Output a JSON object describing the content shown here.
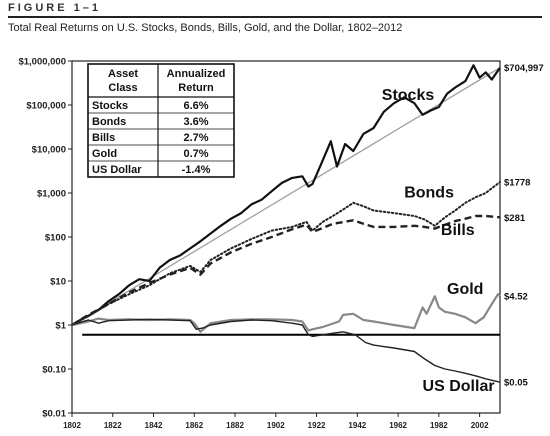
{
  "figure": {
    "label": "FIGURE 1–1",
    "title": "Total Real Returns on U.S. Stocks, Bonds, Bills, Gold, and the Dollar, 1802–2012"
  },
  "colors": {
    "stocks": "#111111",
    "bonds": "#222222",
    "bills": "#222222",
    "gold": "#888888",
    "dollar": "#222222",
    "trend": "#999999",
    "baseline": "#000000"
  },
  "table": {
    "headers": [
      "Asset Class",
      "Annualized Return"
    ],
    "rows": [
      {
        "asset": "Stocks",
        "return": "6.6%"
      },
      {
        "asset": "Bonds",
        "return": "3.6%"
      },
      {
        "asset": "Bills",
        "return": "2.7%"
      },
      {
        "asset": "Gold",
        "return": "0.7%"
      },
      {
        "asset": "US Dollar",
        "return": "-1.4%"
      }
    ]
  },
  "chart_data": {
    "type": "line",
    "title": "Total Real Returns on U.S. Stocks, Bonds, Bills, Gold, and the Dollar, 1802–2012",
    "xlabel": "",
    "ylabel": "",
    "yscale": "log",
    "xlim": [
      1802,
      2012
    ],
    "ylim": [
      0.01,
      1000000
    ],
    "grid": false,
    "y_ticks": [
      {
        "value": 0.01,
        "label": "$0.01"
      },
      {
        "value": 0.1,
        "label": "$0.10"
      },
      {
        "value": 1,
        "label": "$1"
      },
      {
        "value": 10,
        "label": "$10"
      },
      {
        "value": 100,
        "label": "$100"
      },
      {
        "value": 1000,
        "label": "$1,000"
      },
      {
        "value": 10000,
        "label": "$10,000"
      },
      {
        "value": 100000,
        "label": "$100,000"
      },
      {
        "value": 1000000,
        "label": "$1,000,000"
      }
    ],
    "x_ticks": [
      1802,
      1822,
      1842,
      1862,
      1882,
      1902,
      1922,
      1942,
      1962,
      1982,
      2002
    ],
    "baseline_value": 0.6,
    "series": [
      {
        "name": "Stocks",
        "end_label": "$704,997",
        "style": "solid-thick",
        "points": [
          [
            1802,
            1
          ],
          [
            1806,
            1.3
          ],
          [
            1810,
            1.6
          ],
          [
            1815,
            2.2
          ],
          [
            1820,
            3.5
          ],
          [
            1825,
            5
          ],
          [
            1830,
            8
          ],
          [
            1835,
            11
          ],
          [
            1840,
            10
          ],
          [
            1845,
            20
          ],
          [
            1850,
            30
          ],
          [
            1855,
            38
          ],
          [
            1860,
            55
          ],
          [
            1865,
            80
          ],
          [
            1870,
            120
          ],
          [
            1875,
            180
          ],
          [
            1880,
            260
          ],
          [
            1885,
            350
          ],
          [
            1890,
            550
          ],
          [
            1895,
            700
          ],
          [
            1900,
            1100
          ],
          [
            1905,
            1700
          ],
          [
            1910,
            2200
          ],
          [
            1915,
            2400
          ],
          [
            1918,
            1400
          ],
          [
            1920,
            1600
          ],
          [
            1925,
            5500
          ],
          [
            1929,
            15000
          ],
          [
            1932,
            4000
          ],
          [
            1936,
            13000
          ],
          [
            1940,
            9000
          ],
          [
            1945,
            22000
          ],
          [
            1950,
            30000
          ],
          [
            1955,
            70000
          ],
          [
            1960,
            110000
          ],
          [
            1965,
            150000
          ],
          [
            1970,
            110000
          ],
          [
            1974,
            60000
          ],
          [
            1978,
            75000
          ],
          [
            1982,
            90000
          ],
          [
            1986,
            180000
          ],
          [
            1990,
            250000
          ],
          [
            1995,
            350000
          ],
          [
            1999,
            800000
          ],
          [
            2002,
            420000
          ],
          [
            2005,
            550000
          ],
          [
            2008,
            380000
          ],
          [
            2012,
            704997
          ]
        ]
      },
      {
        "name": "Bonds",
        "end_label": "$1778",
        "style": "dotted",
        "points": [
          [
            1802,
            1
          ],
          [
            1810,
            1.6
          ],
          [
            1820,
            3
          ],
          [
            1830,
            5
          ],
          [
            1840,
            8
          ],
          [
            1850,
            15
          ],
          [
            1860,
            22
          ],
          [
            1865,
            16
          ],
          [
            1870,
            30
          ],
          [
            1880,
            55
          ],
          [
            1890,
            90
          ],
          [
            1900,
            140
          ],
          [
            1910,
            170
          ],
          [
            1917,
            220
          ],
          [
            1920,
            140
          ],
          [
            1925,
            220
          ],
          [
            1930,
            300
          ],
          [
            1935,
            420
          ],
          [
            1940,
            600
          ],
          [
            1945,
            500
          ],
          [
            1950,
            400
          ],
          [
            1960,
            350
          ],
          [
            1970,
            300
          ],
          [
            1975,
            250
          ],
          [
            1980,
            180
          ],
          [
            1985,
            280
          ],
          [
            1990,
            400
          ],
          [
            1995,
            600
          ],
          [
            2000,
            800
          ],
          [
            2005,
            1000
          ],
          [
            2012,
            1778
          ]
        ]
      },
      {
        "name": "Bills",
        "end_label": "$281",
        "style": "dashed",
        "points": [
          [
            1802,
            1
          ],
          [
            1810,
            1.7
          ],
          [
            1820,
            3
          ],
          [
            1830,
            5.5
          ],
          [
            1840,
            9
          ],
          [
            1850,
            14
          ],
          [
            1860,
            20
          ],
          [
            1865,
            14
          ],
          [
            1870,
            25
          ],
          [
            1880,
            45
          ],
          [
            1890,
            70
          ],
          [
            1900,
            100
          ],
          [
            1910,
            150
          ],
          [
            1917,
            190
          ],
          [
            1920,
            130
          ],
          [
            1925,
            160
          ],
          [
            1930,
            200
          ],
          [
            1940,
            240
          ],
          [
            1945,
            200
          ],
          [
            1950,
            170
          ],
          [
            1960,
            170
          ],
          [
            1970,
            180
          ],
          [
            1975,
            170
          ],
          [
            1980,
            155
          ],
          [
            1985,
            190
          ],
          [
            1990,
            230
          ],
          [
            1995,
            260
          ],
          [
            2000,
            300
          ],
          [
            2005,
            300
          ],
          [
            2012,
            281
          ]
        ]
      },
      {
        "name": "Gold",
        "end_label": "$4.52",
        "style": "solid-gray",
        "points": [
          [
            1802,
            1
          ],
          [
            1810,
            1.2
          ],
          [
            1815,
            1.4
          ],
          [
            1820,
            1.3
          ],
          [
            1830,
            1.35
          ],
          [
            1840,
            1.3
          ],
          [
            1850,
            1.35
          ],
          [
            1860,
            1.3
          ],
          [
            1862,
            1.1
          ],
          [
            1865,
            0.7
          ],
          [
            1870,
            1.1
          ],
          [
            1880,
            1.3
          ],
          [
            1890,
            1.35
          ],
          [
            1900,
            1.35
          ],
          [
            1910,
            1.3
          ],
          [
            1915,
            1.2
          ],
          [
            1918,
            0.75
          ],
          [
            1920,
            0.8
          ],
          [
            1925,
            0.9
          ],
          [
            1933,
            1.2
          ],
          [
            1935,
            1.7
          ],
          [
            1940,
            1.8
          ],
          [
            1945,
            1.3
          ],
          [
            1950,
            1.2
          ],
          [
            1960,
            1
          ],
          [
            1970,
            0.85
          ],
          [
            1974,
            2.5
          ],
          [
            1976,
            1.8
          ],
          [
            1980,
            4.5
          ],
          [
            1982,
            2.5
          ],
          [
            1985,
            2
          ],
          [
            1990,
            1.8
          ],
          [
            1995,
            1.5
          ],
          [
            2000,
            1.1
          ],
          [
            2004,
            1.5
          ],
          [
            2008,
            3
          ],
          [
            2011,
            5
          ],
          [
            2012,
            4.52
          ]
        ]
      },
      {
        "name": "US Dollar",
        "end_label": "$0.05",
        "style": "solid-thin",
        "points": [
          [
            1802,
            1
          ],
          [
            1806,
            1.15
          ],
          [
            1810,
            1.3
          ],
          [
            1815,
            1.1
          ],
          [
            1820,
            1.25
          ],
          [
            1830,
            1.3
          ],
          [
            1840,
            1.35
          ],
          [
            1850,
            1.3
          ],
          [
            1860,
            1.25
          ],
          [
            1863,
            0.8
          ],
          [
            1866,
            0.85
          ],
          [
            1870,
            1
          ],
          [
            1880,
            1.2
          ],
          [
            1890,
            1.3
          ],
          [
            1900,
            1.25
          ],
          [
            1910,
            1.1
          ],
          [
            1915,
            1
          ],
          [
            1918,
            0.6
          ],
          [
            1920,
            0.55
          ],
          [
            1930,
            0.65
          ],
          [
            1935,
            0.7
          ],
          [
            1941,
            0.6
          ],
          [
            1946,
            0.4
          ],
          [
            1950,
            0.35
          ],
          [
            1960,
            0.3
          ],
          [
            1970,
            0.25
          ],
          [
            1975,
            0.17
          ],
          [
            1980,
            0.12
          ],
          [
            1985,
            0.1
          ],
          [
            1990,
            0.09
          ],
          [
            1995,
            0.08
          ],
          [
            2000,
            0.07
          ],
          [
            2005,
            0.06
          ],
          [
            2012,
            0.05
          ]
        ]
      }
    ],
    "trend_line": {
      "from": [
        1802,
        1
      ],
      "to": [
        2012,
        704997
      ]
    }
  }
}
